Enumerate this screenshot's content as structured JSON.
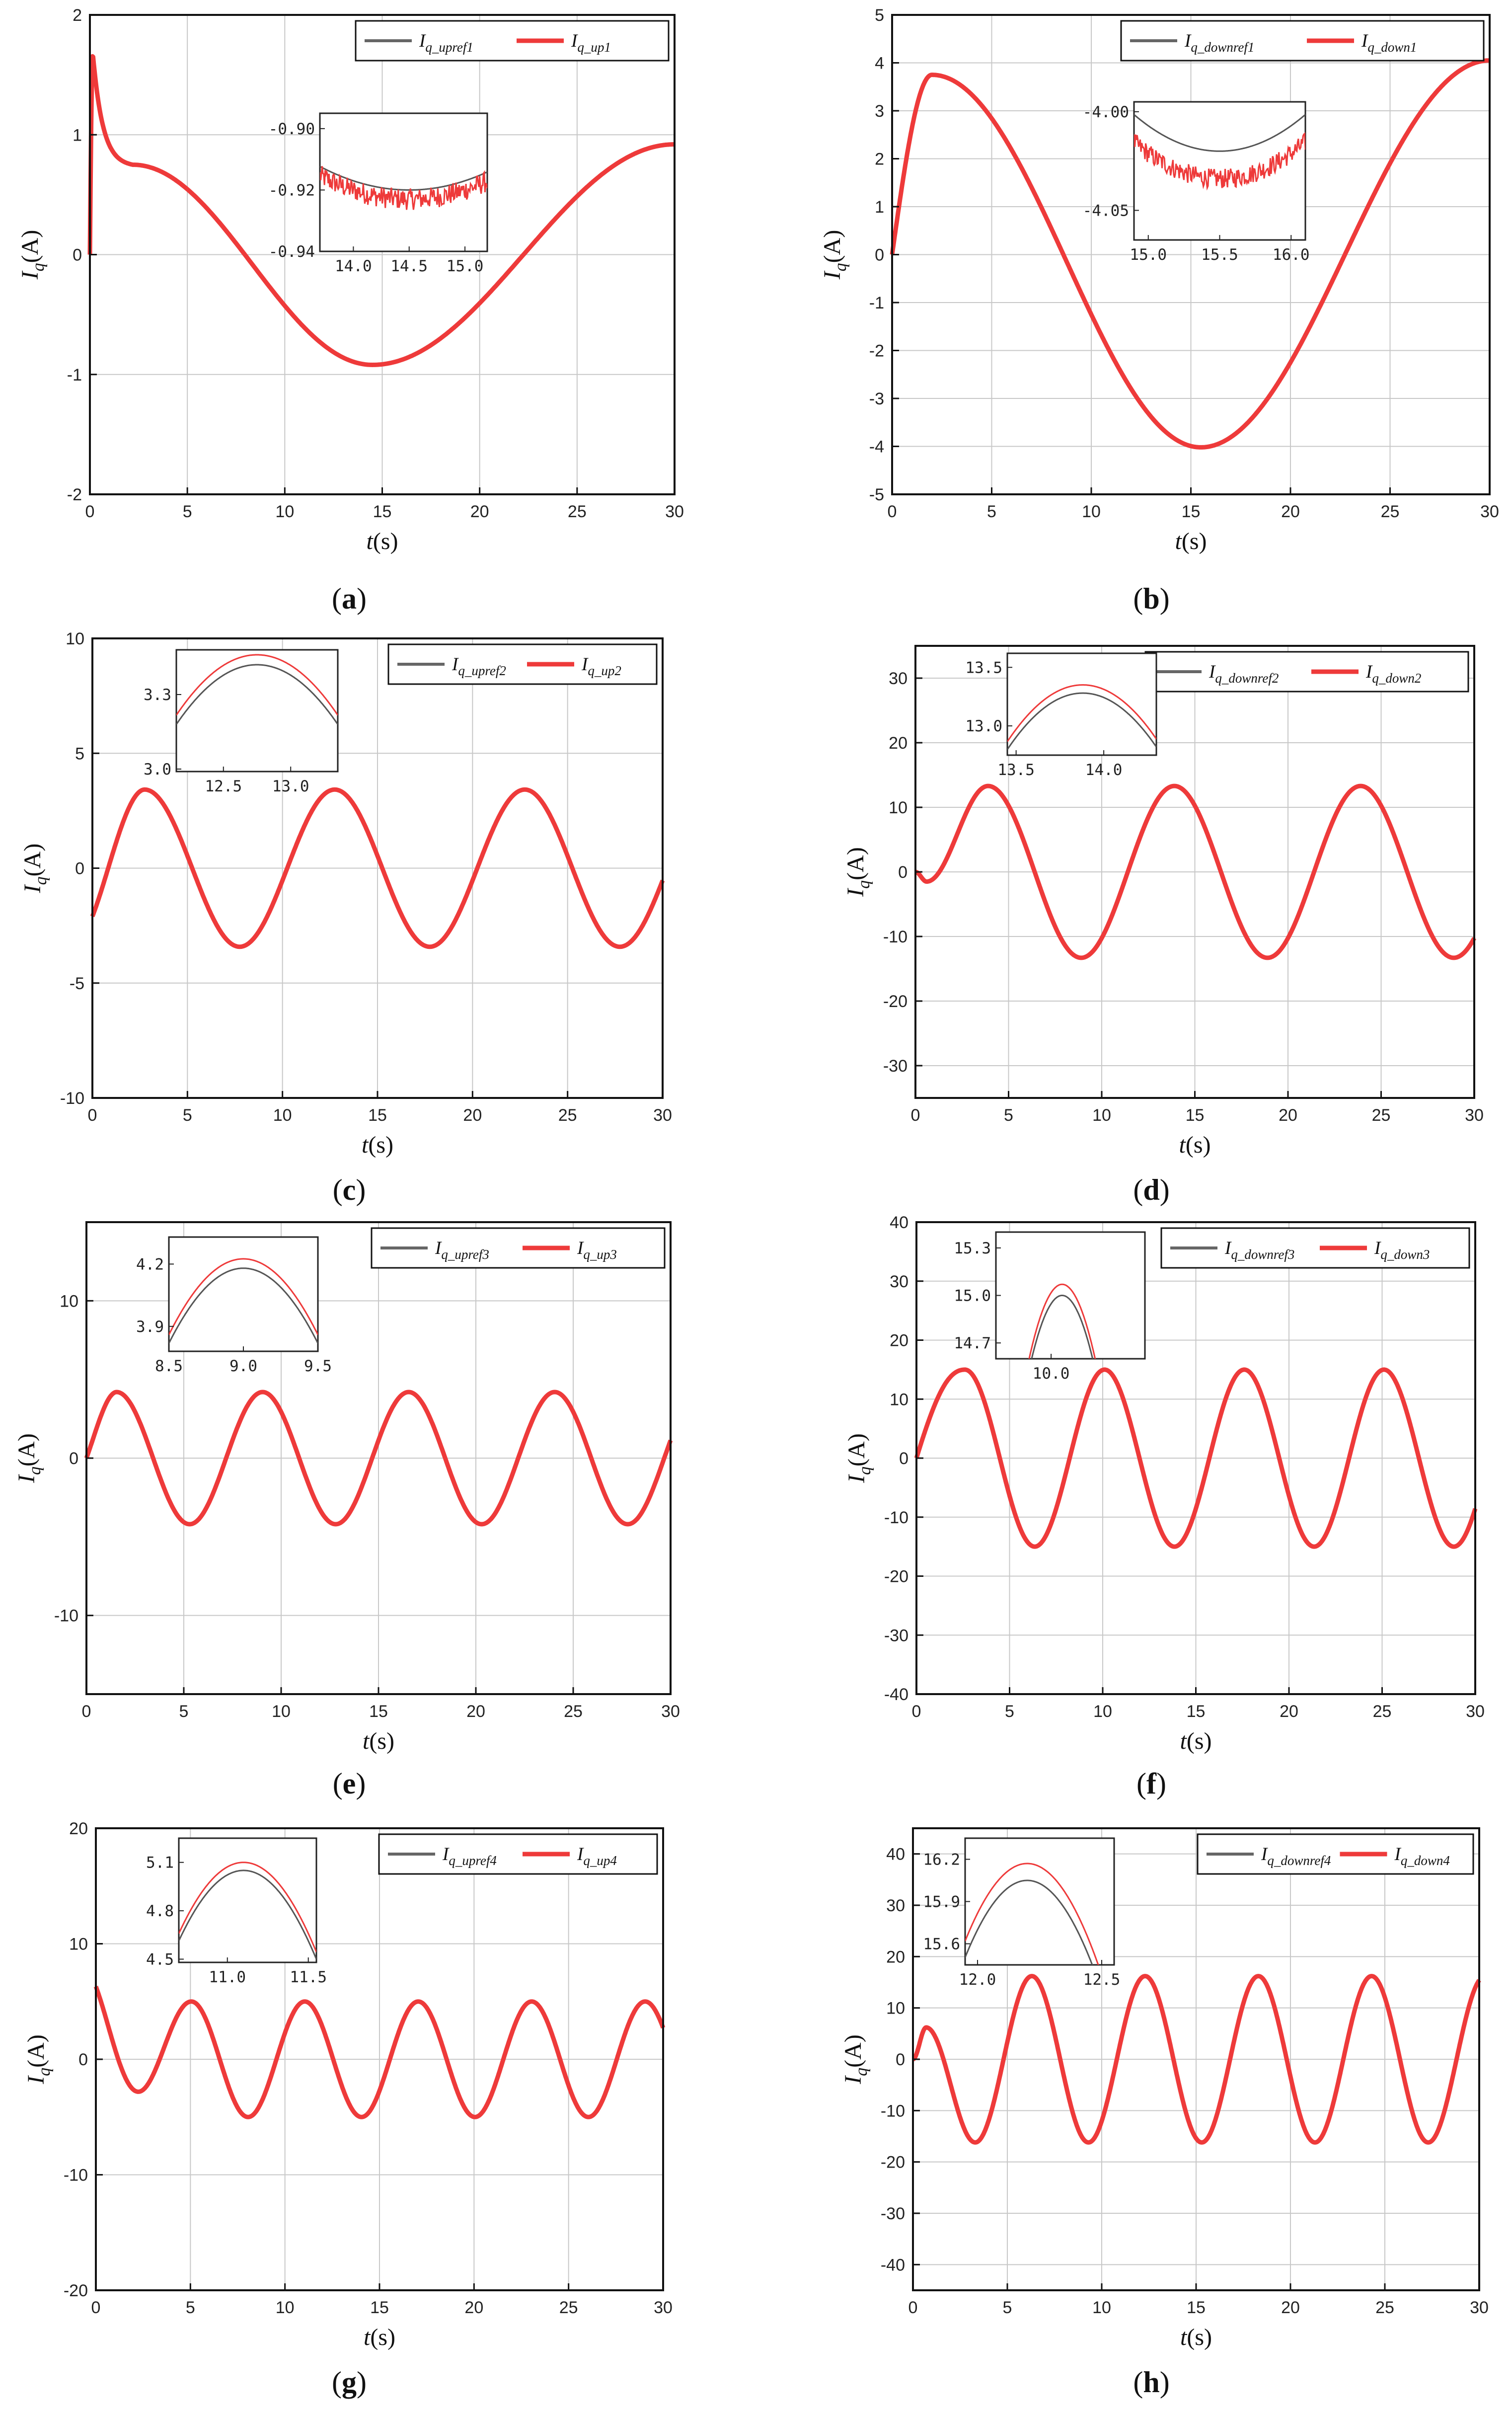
{
  "chart_data": [
    {
      "panel": "a",
      "type": "line",
      "xlabel": "t(s)",
      "ylabel": "Iq(A)",
      "xlim": [
        0,
        30
      ],
      "ylim": [
        -2,
        2
      ],
      "xticks": [
        "0",
        "5",
        "10",
        "15",
        "20",
        "25",
        "30"
      ],
      "yticks": [
        "-2",
        "-1",
        "0",
        "1",
        "2"
      ],
      "grid": true,
      "legend_position": "top-right",
      "series": [
        {
          "name": "Iq_upref1",
          "color": "#666666",
          "role": "reference"
        },
        {
          "name": "Iq_up1",
          "color": "#ee3a3a",
          "role": "actual"
        }
      ],
      "curve": {
        "kind": "transient",
        "amplitude": 0.92,
        "peak_value": 1.68,
        "peak_time": 0.15,
        "min_value": -0.92,
        "min_time": 14.5,
        "end_value": 0.92
      },
      "inset": {
        "xlim": [
          13.7,
          15.2
        ],
        "ylim": [
          -0.94,
          -0.895
        ],
        "xticks": [
          "14.0",
          "14.5",
          "15.0"
        ],
        "yticks": [
          "-0.90",
          "-0.92",
          "-0.94"
        ],
        "ref_min": -0.92,
        "act_offset": -0.003,
        "noise": 0.0035
      }
    },
    {
      "panel": "b",
      "type": "line",
      "xlabel": "t(s)",
      "ylabel": "Iq(A)",
      "xlim": [
        0,
        30
      ],
      "ylim": [
        -5,
        5
      ],
      "xticks": [
        "0",
        "5",
        "10",
        "15",
        "20",
        "25",
        "30"
      ],
      "yticks": [
        "-5",
        "-4",
        "-3",
        "-2",
        "-1",
        "0",
        "1",
        "2",
        "3",
        "4",
        "5"
      ],
      "grid": true,
      "legend_position": "top-right",
      "series": [
        {
          "name": "Iq_downref1",
          "color": "#666666",
          "role": "reference"
        },
        {
          "name": "Iq_down1",
          "color": "#ee3a3a",
          "role": "actual"
        }
      ],
      "curve": {
        "kind": "transient",
        "peak_value": 3.75,
        "peak_time": 2.0,
        "min_value": -4.02,
        "min_time": 15.5,
        "end_value": 4.05
      },
      "inset": {
        "xlim": [
          14.9,
          16.1
        ],
        "ylim": [
          -4.065,
          -3.995
        ],
        "xticks": [
          "15.0",
          "15.5",
          "16.0"
        ],
        "yticks": [
          "-4.00",
          "-4.05"
        ],
        "ref_min": -4.02,
        "act_offset": -0.014,
        "noise": 0.005
      }
    },
    {
      "panel": "c",
      "type": "line",
      "xlabel": "t(s)",
      "ylabel": "Iq(A)",
      "xlim": [
        0,
        30
      ],
      "ylim": [
        -10,
        10
      ],
      "xticks": [
        "0",
        "5",
        "10",
        "15",
        "20",
        "25",
        "30"
      ],
      "yticks": [
        "-10",
        "-5",
        "0",
        "5",
        "10"
      ],
      "grid": true,
      "legend_position": "top-right",
      "series": [
        {
          "name": "Iq_upref2",
          "color": "#666666",
          "role": "reference"
        },
        {
          "name": "Iq_up2",
          "color": "#ee3a3a",
          "role": "actual"
        }
      ],
      "curve": {
        "kind": "sine",
        "amplitude": 3.42,
        "period": 10.0,
        "peak_time": 2.75,
        "start_value": -2.1,
        "end_value": -0.6
      },
      "inset": {
        "xlim": [
          12.15,
          13.35
        ],
        "ylim": [
          2.99,
          3.48
        ],
        "xticks": [
          "12.5",
          "13.0"
        ],
        "yticks": [
          "3.0",
          "3.3"
        ],
        "peak_time": 12.75,
        "ref_peak": 3.42,
        "act_offset": 0.04
      }
    },
    {
      "panel": "d",
      "type": "line",
      "xlabel": "t(s)",
      "ylabel": "Iq(A)",
      "xlim": [
        0,
        30
      ],
      "ylim": [
        -35,
        35
      ],
      "xticks": [
        "0",
        "5",
        "10",
        "15",
        "20",
        "25",
        "30"
      ],
      "yticks": [
        "-30",
        "-20",
        "-10",
        "0",
        "10",
        "20",
        "30"
      ],
      "grid": true,
      "legend_position": "top-right",
      "series": [
        {
          "name": "Iq_downref2",
          "color": "#666666",
          "role": "reference"
        },
        {
          "name": "Iq_down2",
          "color": "#ee3a3a",
          "role": "actual"
        }
      ],
      "curve": {
        "kind": "sine",
        "amplitude": 13.3,
        "period": 10.0,
        "peak_time": 3.9,
        "start_value": 0,
        "dip_value": -1.5,
        "dip_time": 0.6,
        "end_value": -10.2
      },
      "inset": {
        "xlim": [
          13.45,
          14.3
        ],
        "ylim": [
          12.75,
          13.62
        ],
        "xticks": [
          "13.5",
          "14.0"
        ],
        "yticks": [
          "13.0",
          "13.5"
        ],
        "peak_time": 13.88,
        "ref_peak": 13.28,
        "act_offset": 0.07
      }
    },
    {
      "panel": "e",
      "type": "line",
      "xlabel": "t(s)",
      "ylabel": "Iq(A)",
      "xlim": [
        0,
        30
      ],
      "ylim": [
        -15,
        15
      ],
      "xticks": [
        "0",
        "5",
        "10",
        "15",
        "20",
        "25",
        "30"
      ],
      "yticks": [
        "-10",
        "0",
        "10"
      ],
      "grid": true,
      "legend_position": "top-right",
      "series": [
        {
          "name": "Iq_upref3",
          "color": "#666666",
          "role": "reference"
        },
        {
          "name": "Iq_up3",
          "color": "#ee3a3a",
          "role": "actual"
        }
      ],
      "curve": {
        "kind": "sine",
        "amplitude": 4.2,
        "period": 7.5,
        "peak_time": 1.55,
        "start_value": 0,
        "end_value": 1.2
      },
      "inset": {
        "xlim": [
          8.5,
          9.5
        ],
        "ylim": [
          3.78,
          4.33
        ],
        "xticks": [
          "8.5",
          "9.0",
          "9.5"
        ],
        "yticks": [
          "3.9",
          "4.2"
        ],
        "peak_time": 9.0,
        "ref_peak": 4.18,
        "act_offset": 0.045
      }
    },
    {
      "panel": "f",
      "type": "line",
      "xlabel": "t(s)",
      "ylabel": "Iq(A)",
      "xlim": [
        0,
        30
      ],
      "ylim": [
        -40,
        40
      ],
      "xticks": [
        "0",
        "5",
        "10",
        "15",
        "20",
        "25",
        "30"
      ],
      "yticks": [
        "-40",
        "-30",
        "-20",
        "-10",
        "0",
        "10",
        "20",
        "30",
        "40"
      ],
      "grid": true,
      "legend_position": "top-right",
      "series": [
        {
          "name": "Iq_downref3",
          "color": "#666666",
          "role": "reference"
        },
        {
          "name": "Iq_down3",
          "color": "#ee3a3a",
          "role": "actual"
        }
      ],
      "curve": {
        "kind": "sine",
        "amplitude": 15.0,
        "period": 7.5,
        "peak_time": 2.6,
        "start_value": 0,
        "end_value": -8.5
      },
      "inset": {
        "xlim": [
          9.5,
          10.85
        ],
        "ylim": [
          14.6,
          15.4
        ],
        "xticks": [
          "10.0"
        ],
        "yticks": [
          "15.3",
          "15.0",
          "14.7"
        ],
        "peak_time": 10.1,
        "ref_peak": 15.0,
        "act_offset": 0.07
      }
    },
    {
      "panel": "g",
      "type": "line",
      "xlabel": "t(s)",
      "ylabel": "Iq(A)",
      "xlim": [
        0,
        30
      ],
      "ylim": [
        -20,
        20
      ],
      "xticks": [
        "0",
        "5",
        "10",
        "15",
        "20",
        "25",
        "30"
      ],
      "yticks": [
        "-20",
        "-10",
        "0",
        "10",
        "20"
      ],
      "grid": true,
      "legend_position": "top-right",
      "series": [
        {
          "name": "Iq_upref4",
          "color": "#666666",
          "role": "reference"
        },
        {
          "name": "Iq_up4",
          "color": "#ee3a3a",
          "role": "actual"
        }
      ],
      "curve": {
        "kind": "sine",
        "amplitude": 5.0,
        "period": 6.0,
        "peak_time": 5.05,
        "start_value": 6.3,
        "end_value": 3.0
      },
      "inset": {
        "xlim": [
          10.7,
          11.55
        ],
        "ylim": [
          4.48,
          5.25
        ],
        "xticks": [
          "11.0",
          "11.5"
        ],
        "yticks": [
          "5.1",
          "4.8",
          "4.5"
        ],
        "peak_time": 11.1,
        "ref_peak": 5.05,
        "act_offset": 0.05
      }
    },
    {
      "panel": "h",
      "type": "line",
      "xlabel": "t(s)",
      "ylabel": "Iq(A)",
      "xlim": [
        0,
        30
      ],
      "ylim": [
        -45,
        45
      ],
      "xticks": [
        "0",
        "5",
        "10",
        "15",
        "20",
        "25",
        "30"
      ],
      "yticks": [
        "-40",
        "-30",
        "-20",
        "-10",
        "0",
        "10",
        "20",
        "30",
        "40"
      ],
      "grid": true,
      "legend_position": "top-right",
      "series": [
        {
          "name": "Iq_downref4",
          "color": "#666666",
          "role": "reference"
        },
        {
          "name": "Iq_down4",
          "color": "#ee3a3a",
          "role": "actual"
        }
      ],
      "curve": {
        "kind": "sine",
        "amplitude": 16.2,
        "period": 6.0,
        "peak_time": 6.3,
        "start_value": 0,
        "early_peak_value": 6.2,
        "early_peak_time": 0.7,
        "end_value": 15.5
      },
      "inset": {
        "xlim": [
          11.95,
          12.55
        ],
        "ylim": [
          15.45,
          16.35
        ],
        "xticks": [
          "12.0",
          "12.5"
        ],
        "yticks": [
          "16.2",
          "15.9",
          "15.6"
        ],
        "peak_time": 12.2,
        "ref_peak": 16.05,
        "act_offset": 0.12
      }
    }
  ],
  "panel_labels": [
    "a",
    "b",
    "c",
    "d",
    "e",
    "f",
    "g",
    "h"
  ]
}
